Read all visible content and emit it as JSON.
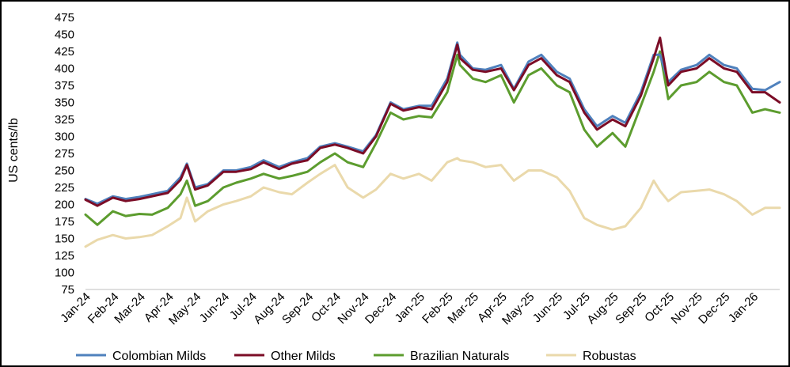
{
  "chart_data": {
    "type": "line",
    "title": "",
    "xlabel": "",
    "ylabel": "US cents/lb",
    "ylim": [
      75,
      475
    ],
    "yticks": [
      75,
      100,
      125,
      150,
      175,
      200,
      225,
      250,
      275,
      300,
      325,
      350,
      375,
      400,
      425,
      450,
      475
    ],
    "x_tick_labels": [
      "Jan-24",
      "Feb-24",
      "Mar-24",
      "Apr-24",
      "May-24",
      "Jun-24",
      "Jul-24",
      "Aug-24",
      "Sep-24",
      "Oct-24",
      "Nov-24",
      "Dec-24",
      "Jan-25",
      "Feb-25",
      "Mar-25",
      "Apr-25",
      "May-25",
      "Jun-25",
      "Jul-25",
      "Aug-25",
      "Sep-25",
      "Oct-25",
      "Nov-25",
      "Dec-25",
      "Jan-26"
    ],
    "grid": false,
    "legend_position": "bottom",
    "x": [
      "2024-01-02",
      "2024-01-15",
      "2024-02-01",
      "2024-02-15",
      "2024-03-01",
      "2024-03-15",
      "2024-04-01",
      "2024-04-15",
      "2024-04-22",
      "2024-05-01",
      "2024-05-15",
      "2024-06-01",
      "2024-06-15",
      "2024-07-01",
      "2024-07-15",
      "2024-08-01",
      "2024-08-15",
      "2024-09-01",
      "2024-09-15",
      "2024-10-01",
      "2024-10-15",
      "2024-11-01",
      "2024-11-15",
      "2024-12-01",
      "2024-12-15",
      "2025-01-01",
      "2025-01-15",
      "2025-02-01",
      "2025-02-12",
      "2025-02-15",
      "2025-03-01",
      "2025-03-15",
      "2025-04-01",
      "2025-04-15",
      "2025-05-01",
      "2025-05-15",
      "2025-06-01",
      "2025-06-15",
      "2025-07-01",
      "2025-07-15",
      "2025-08-01",
      "2025-08-15",
      "2025-09-01",
      "2025-09-15",
      "2025-09-22",
      "2025-10-01",
      "2025-10-15",
      "2025-11-01",
      "2025-11-15",
      "2025-12-01",
      "2025-12-15",
      "2026-01-01",
      "2026-01-15",
      "2026-01-31"
    ],
    "series": [
      {
        "name": "Colombian Milds",
        "color": "#4f81bd",
        "values": [
          208,
          201,
          212,
          208,
          211,
          215,
          220,
          240,
          260,
          225,
          230,
          250,
          250,
          255,
          265,
          255,
          262,
          268,
          285,
          290,
          285,
          278,
          302,
          350,
          340,
          345,
          345,
          385,
          438,
          420,
          400,
          398,
          405,
          370,
          410,
          420,
          395,
          385,
          340,
          315,
          330,
          320,
          365,
          420,
          420,
          380,
          398,
          405,
          420,
          405,
          400,
          370,
          368,
          380
        ]
      },
      {
        "name": "Other Milds",
        "color": "#7b0c26",
        "values": [
          207,
          198,
          210,
          205,
          208,
          212,
          217,
          236,
          258,
          222,
          228,
          248,
          248,
          252,
          262,
          252,
          260,
          265,
          283,
          288,
          283,
          275,
          300,
          348,
          338,
          343,
          340,
          380,
          435,
          415,
          398,
          395,
          400,
          368,
          405,
          415,
          390,
          380,
          335,
          310,
          325,
          315,
          360,
          415,
          445,
          375,
          395,
          400,
          415,
          400,
          395,
          365,
          365,
          350
        ]
      },
      {
        "name": "Brazilian Naturals",
        "color": "#5c9c2e",
        "values": [
          185,
          170,
          190,
          183,
          186,
          185,
          195,
          215,
          235,
          198,
          205,
          225,
          232,
          238,
          245,
          238,
          242,
          248,
          262,
          275,
          262,
          255,
          290,
          335,
          325,
          330,
          328,
          365,
          420,
          405,
          385,
          380,
          390,
          350,
          390,
          400,
          375,
          365,
          310,
          285,
          305,
          285,
          345,
          395,
          425,
          355,
          375,
          380,
          395,
          380,
          375,
          335,
          340,
          335
        ]
      },
      {
        "name": "Robustas",
        "color": "#ead9ab",
        "values": [
          138,
          148,
          155,
          150,
          152,
          155,
          168,
          180,
          210,
          175,
          190,
          200,
          205,
          212,
          225,
          218,
          215,
          232,
          245,
          258,
          225,
          210,
          222,
          245,
          238,
          245,
          235,
          262,
          268,
          265,
          262,
          255,
          258,
          235,
          250,
          250,
          240,
          220,
          180,
          170,
          163,
          168,
          195,
          235,
          220,
          205,
          218,
          220,
          222,
          215,
          205,
          185,
          195,
          195
        ]
      }
    ]
  }
}
